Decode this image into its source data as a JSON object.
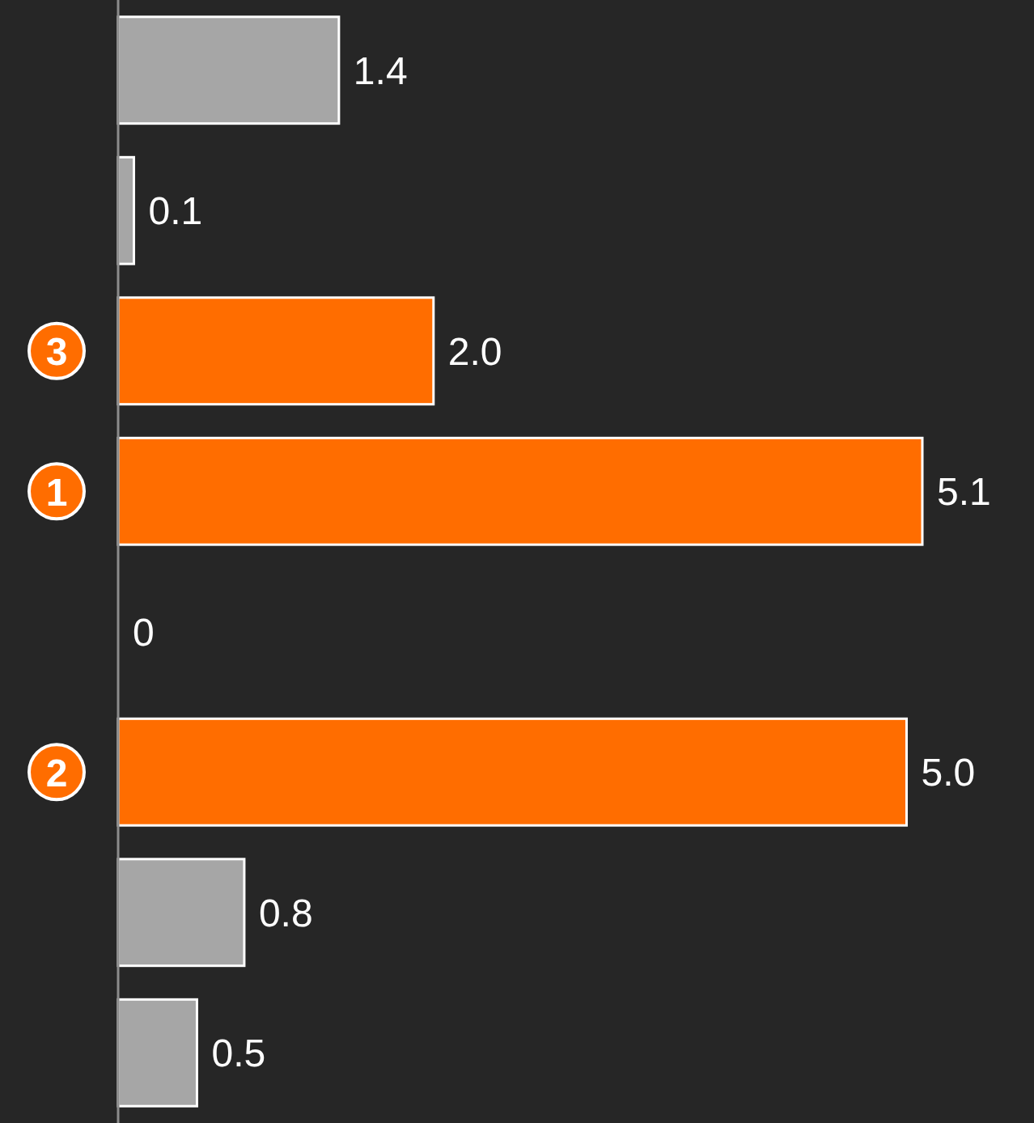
{
  "chart_data": {
    "type": "bar",
    "orientation": "horizontal",
    "data_labels": true,
    "categories": [
      null,
      null,
      "3",
      "1",
      null,
      "2",
      null,
      null
    ],
    "values": [
      1.4,
      0.1,
      2.0,
      5.1,
      0,
      5.0,
      0.8,
      0.5
    ],
    "colors": [
      "#a6a6a6",
      "#a6a6a6",
      "#ff6d00",
      "#ff6d00",
      "#a6a6a6",
      "#ff6d00",
      "#a6a6a6",
      "#a6a6a6"
    ],
    "value_labels": [
      "1.4",
      "0.1",
      "2.0",
      "5.1",
      "0",
      "5.0",
      "0.8",
      "0.5"
    ]
  }
}
